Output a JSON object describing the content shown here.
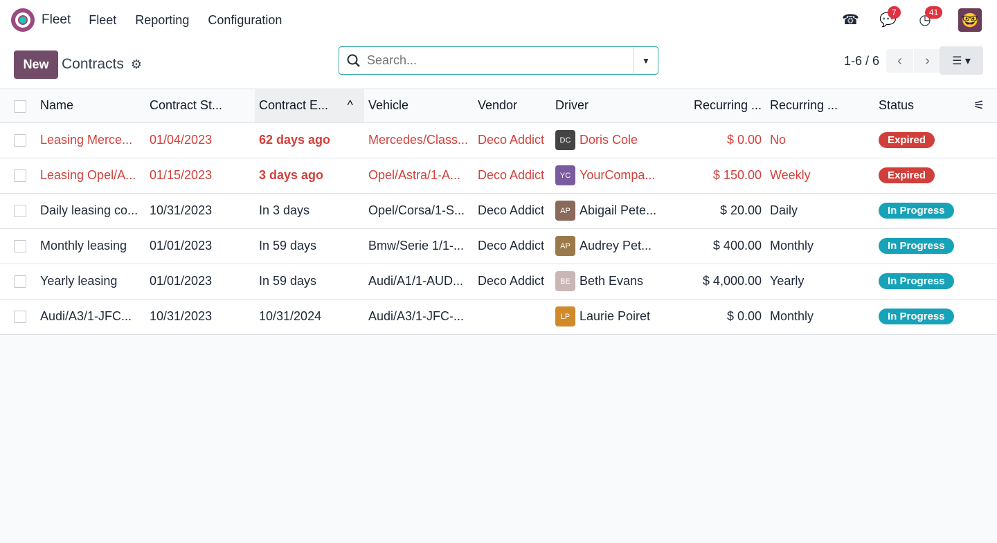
{
  "topbar": {
    "app_name": "Fleet",
    "menu": [
      "Fleet",
      "Reporting",
      "Configuration"
    ],
    "messages_count": "7",
    "activities_count": "41"
  },
  "control": {
    "new_label": "New",
    "title": "Contracts",
    "search_placeholder": "Search...",
    "pager": "1-6 / 6"
  },
  "columns": [
    "Name",
    "Contract St...",
    "Contract E...",
    "Vehicle",
    "Vendor",
    "Driver",
    "Recurring ...",
    "Recurring ...",
    "Status"
  ],
  "sort_indicator": "^",
  "colors": {
    "primary": "#714b67",
    "expired": "#d23f3a",
    "in_progress": "#17a2b8",
    "danger_badge": "#e0313f"
  },
  "rows": [
    {
      "name": "Leasing Merce...",
      "start": "01/04/2023",
      "end": "62 days ago",
      "vehicle": "Mercedes/Class...",
      "vendor": "Deco Addict",
      "driver": "Doris Cole",
      "initials": "DC",
      "amount": "$ 0.00",
      "freq": "No",
      "status": "Expired",
      "expired": true,
      "ph": "#444"
    },
    {
      "name": "Leasing Opel/A...",
      "start": "01/15/2023",
      "end": "3 days ago",
      "vehicle": "Opel/Astra/1-A...",
      "vendor": "Deco Addict",
      "driver": "YourCompa...",
      "initials": "YC",
      "amount": "$ 150.00",
      "freq": "Weekly",
      "status": "Expired",
      "expired": true,
      "ph": "#7a5c9e"
    },
    {
      "name": "Daily leasing co...",
      "start": "10/31/2023",
      "end": "In 3 days",
      "vehicle": "Opel/Corsa/1-S...",
      "vendor": "Deco Addict",
      "driver": "Abigail Pete...",
      "initials": "AP",
      "amount": "$ 20.00",
      "freq": "Daily",
      "status": "In Progress",
      "expired": false,
      "ph": "#8a6a5a"
    },
    {
      "name": "Monthly leasing",
      "start": "01/01/2023",
      "end": "In 59 days",
      "vehicle": "Bmw/Serie 1/1-...",
      "vendor": "Deco Addict",
      "driver": "Audrey Pet...",
      "initials": "AP",
      "amount": "$ 400.00",
      "freq": "Monthly",
      "status": "In Progress",
      "expired": false,
      "ph": "#9a7a4a"
    },
    {
      "name": "Yearly leasing",
      "start": "01/01/2023",
      "end": "In 59 days",
      "vehicle": "Audi/A1/1-AUD...",
      "vendor": "Deco Addict",
      "driver": "Beth Evans",
      "initials": "BE",
      "amount": "$ 4,000.00",
      "freq": "Yearly",
      "status": "In Progress",
      "expired": false,
      "ph": "#c9b6b6"
    },
    {
      "name": "Audi/A3/1-JFC...",
      "start": "10/31/2023",
      "end": "10/31/2024",
      "vehicle": "Audi/A3/1-JFC-...",
      "vendor": "",
      "driver": "Laurie Poiret",
      "initials": "LP",
      "amount": "$ 0.00",
      "freq": "Monthly",
      "status": "In Progress",
      "expired": false,
      "ph": "#d08a2a"
    }
  ]
}
